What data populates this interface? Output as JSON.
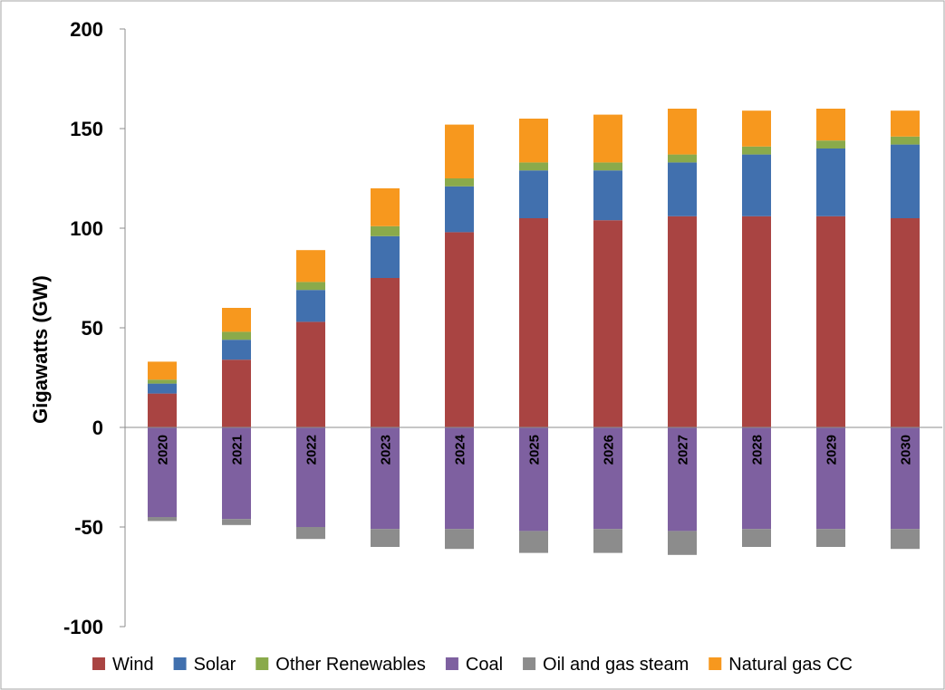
{
  "chart_data": {
    "type": "bar",
    "stacked": true,
    "title": "",
    "xlabel": "",
    "ylabel": "Gigawatts (GW)",
    "ylim": [
      -100,
      200
    ],
    "yticks": [
      200,
      150,
      100,
      50,
      0,
      -50,
      -100
    ],
    "grid": false,
    "legend_position": "bottom",
    "categories": [
      "2020",
      "2021",
      "2022",
      "2023",
      "2024",
      "2025",
      "2026",
      "2027",
      "2028",
      "2029",
      "2030"
    ],
    "series": [
      {
        "name": "Wind",
        "color": "#A94442",
        "values": [
          17,
          34,
          53,
          75,
          98,
          105,
          104,
          106,
          106,
          106,
          105
        ]
      },
      {
        "name": "Solar",
        "color": "#4170AE",
        "values": [
          5,
          10,
          16,
          21,
          23,
          24,
          25,
          27,
          31,
          34,
          37
        ]
      },
      {
        "name": "Other Renewables",
        "color": "#8AAA4B",
        "values": [
          2,
          4,
          4,
          5,
          4,
          4,
          4,
          4,
          4,
          4,
          4
        ]
      },
      {
        "name": "Coal",
        "color": "#7E60A0",
        "values": [
          -45,
          -46,
          -50,
          -51,
          -51,
          -52,
          -51,
          -52,
          -51,
          -51,
          -51
        ]
      },
      {
        "name": "Oil and gas steam",
        "color": "#8C8C8C",
        "values": [
          -2,
          -3,
          -6,
          -9,
          -10,
          -11,
          -12,
          -12,
          -9,
          -9,
          -10
        ]
      },
      {
        "name": "Natural gas CC",
        "color": "#F7981E",
        "values": [
          9,
          12,
          16,
          19,
          27,
          22,
          24,
          23,
          18,
          16,
          13
        ]
      }
    ]
  }
}
